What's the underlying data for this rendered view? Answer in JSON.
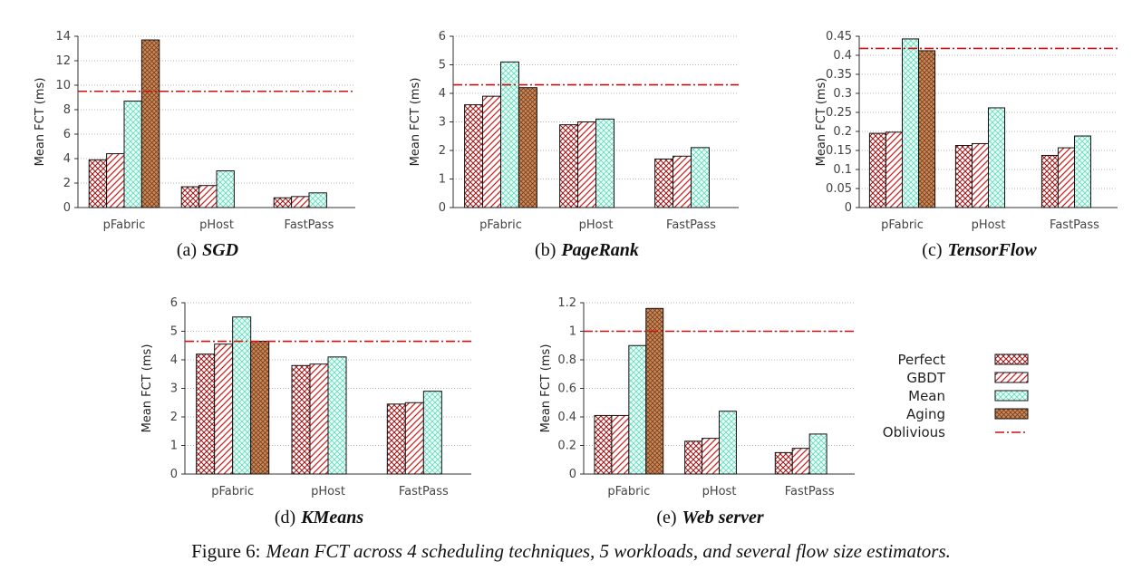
{
  "figure_caption": {
    "label": "Figure 6:",
    "text": "Mean FCT across 4 scheduling techniques, 5 workloads, and several flow size estimators."
  },
  "legend": [
    {
      "name": "Perfect",
      "pattern": "crosshatch"
    },
    {
      "name": "GBDT",
      "pattern": "diagonal"
    },
    {
      "name": "Mean",
      "pattern": "teal-crosshatch"
    },
    {
      "name": "Aging",
      "pattern": "orange-crosshatch"
    },
    {
      "name": "Oblivious",
      "pattern": "dash-dot-line"
    }
  ],
  "colors": {
    "hatch_red": "#9b1c1c",
    "mean_fill": "#e6fbf4",
    "mean_hatch": "#56d3b8",
    "aging_fill": "#c98a5e",
    "aging_hatch": "#7a3d17",
    "oblivious_line": "#cc1111",
    "grid": "#999999"
  },
  "chart_data": [
    {
      "type": "bar",
      "caption_label": "(a)",
      "caption_name": "SGD",
      "ylabel": "Mean FCT (ms)",
      "ylim": [
        0,
        14
      ],
      "yticks": [
        "0",
        "2",
        "4",
        "6",
        "8",
        "10",
        "12",
        "14"
      ],
      "categories": [
        "pFabric",
        "pHost",
        "FastPass"
      ],
      "series": [
        {
          "name": "Perfect",
          "values": [
            3.9,
            1.7,
            0.8
          ]
        },
        {
          "name": "GBDT",
          "values": [
            4.4,
            1.8,
            0.9
          ]
        },
        {
          "name": "Mean",
          "values": [
            8.7,
            3.0,
            1.2
          ]
        },
        {
          "name": "Aging",
          "values": [
            13.7,
            null,
            null
          ]
        }
      ],
      "oblivious": 9.5,
      "grid": true
    },
    {
      "type": "bar",
      "caption_label": "(b)",
      "caption_name": "PageRank",
      "ylabel": "Mean FCT (ms)",
      "ylim": [
        0,
        6
      ],
      "yticks": [
        "0",
        "1",
        "2",
        "3",
        "4",
        "5",
        "6"
      ],
      "categories": [
        "pFabric",
        "pHost",
        "FastPass"
      ],
      "series": [
        {
          "name": "Perfect",
          "values": [
            3.6,
            2.9,
            1.7
          ]
        },
        {
          "name": "GBDT",
          "values": [
            3.9,
            3.0,
            1.8
          ]
        },
        {
          "name": "Mean",
          "values": [
            5.1,
            3.1,
            2.1
          ]
        },
        {
          "name": "Aging",
          "values": [
            4.2,
            null,
            null
          ]
        }
      ],
      "oblivious": 4.3,
      "grid": true
    },
    {
      "type": "bar",
      "caption_label": "(c)",
      "caption_name": "TensorFlow",
      "ylabel": "Mean FCT (ms)",
      "ylim": [
        0,
        0.45
      ],
      "yticks": [
        "0",
        "0.05",
        "0.1",
        "0.15",
        "0.2",
        "0.25",
        "0.3",
        "0.35",
        "0.4",
        "0.45"
      ],
      "categories": [
        "pFabric",
        "pHost",
        "FastPass"
      ],
      "series": [
        {
          "name": "Perfect",
          "values": [
            0.195,
            0.163,
            0.137
          ]
        },
        {
          "name": "GBDT",
          "values": [
            0.198,
            0.168,
            0.157
          ]
        },
        {
          "name": "Mean",
          "values": [
            0.443,
            0.262,
            0.188
          ]
        },
        {
          "name": "Aging",
          "values": [
            0.412,
            null,
            null
          ]
        }
      ],
      "oblivious": 0.418,
      "grid": true
    },
    {
      "type": "bar",
      "caption_label": "(d)",
      "caption_name": "KMeans",
      "ylabel": "Mean FCT (ms)",
      "ylim": [
        0,
        6
      ],
      "yticks": [
        "0",
        "1",
        "2",
        "3",
        "4",
        "5",
        "6"
      ],
      "categories": [
        "pFabric",
        "pHost",
        "FastPass"
      ],
      "series": [
        {
          "name": "Perfect",
          "values": [
            4.2,
            3.8,
            2.45
          ]
        },
        {
          "name": "GBDT",
          "values": [
            4.55,
            3.85,
            2.5
          ]
        },
        {
          "name": "Mean",
          "values": [
            5.5,
            4.1,
            2.9
          ]
        },
        {
          "name": "Aging",
          "values": [
            4.65,
            null,
            null
          ]
        }
      ],
      "oblivious": 4.65,
      "grid": true
    },
    {
      "type": "bar",
      "caption_label": "(e)",
      "caption_name": "Web server",
      "ylabel": "Mean FCT (ms)",
      "ylim": [
        0,
        1.2
      ],
      "yticks": [
        "0",
        "0.2",
        "0.4",
        "0.6",
        "0.8",
        "1",
        "1.2"
      ],
      "categories": [
        "pFabric",
        "pHost",
        "FastPass"
      ],
      "series": [
        {
          "name": "Perfect",
          "values": [
            0.41,
            0.23,
            0.15
          ]
        },
        {
          "name": "GBDT",
          "values": [
            0.41,
            0.25,
            0.18
          ]
        },
        {
          "name": "Mean",
          "values": [
            0.9,
            0.44,
            0.28
          ]
        },
        {
          "name": "Aging",
          "values": [
            1.16,
            null,
            null
          ]
        }
      ],
      "oblivious": 1.0,
      "grid": true
    }
  ]
}
